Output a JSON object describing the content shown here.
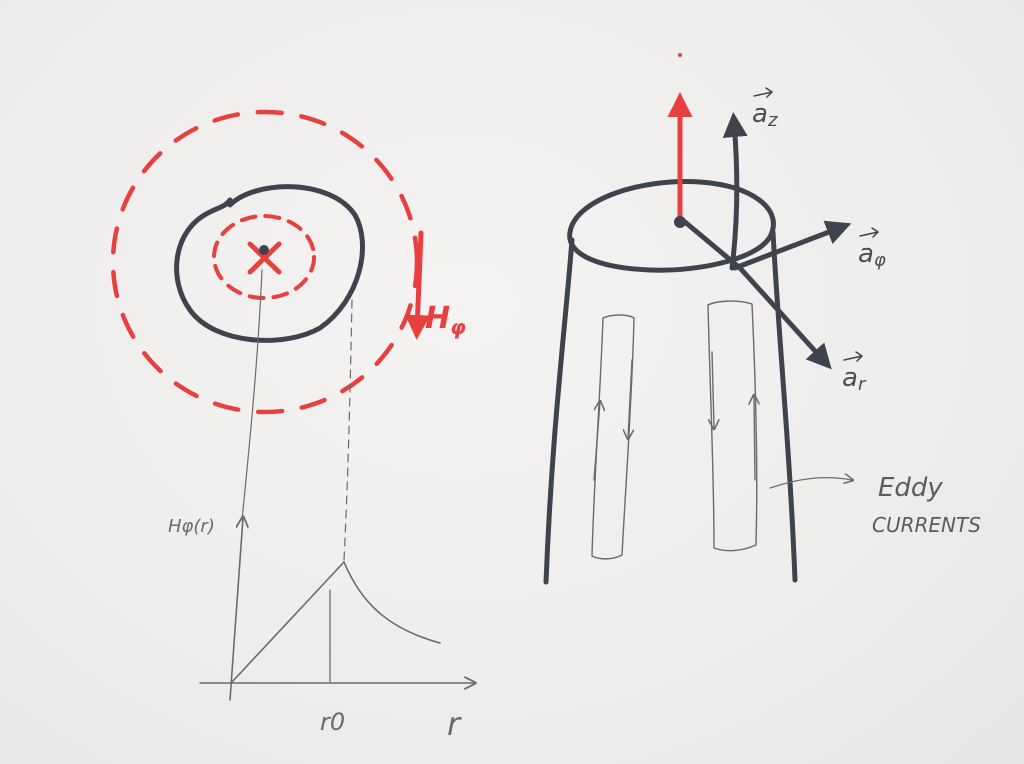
{
  "labels": {
    "h_phi_field": "H",
    "h_phi_sub": "φ",
    "graph_y_label": "Hφ(r)",
    "graph_x_label": "r",
    "graph_radius_tick": "r0",
    "a_z": "a",
    "a_z_sub": "z",
    "a_phi": "a",
    "a_phi_sub": "φ",
    "a_r": "a",
    "a_r_sub": "r",
    "eddy_line1": "Eddy",
    "eddy_line2": "CURRENTS"
  },
  "colors": {
    "red_pen": "#e8403f",
    "dark_pen": "#3f434d",
    "pencil": "#6b6b6b"
  }
}
